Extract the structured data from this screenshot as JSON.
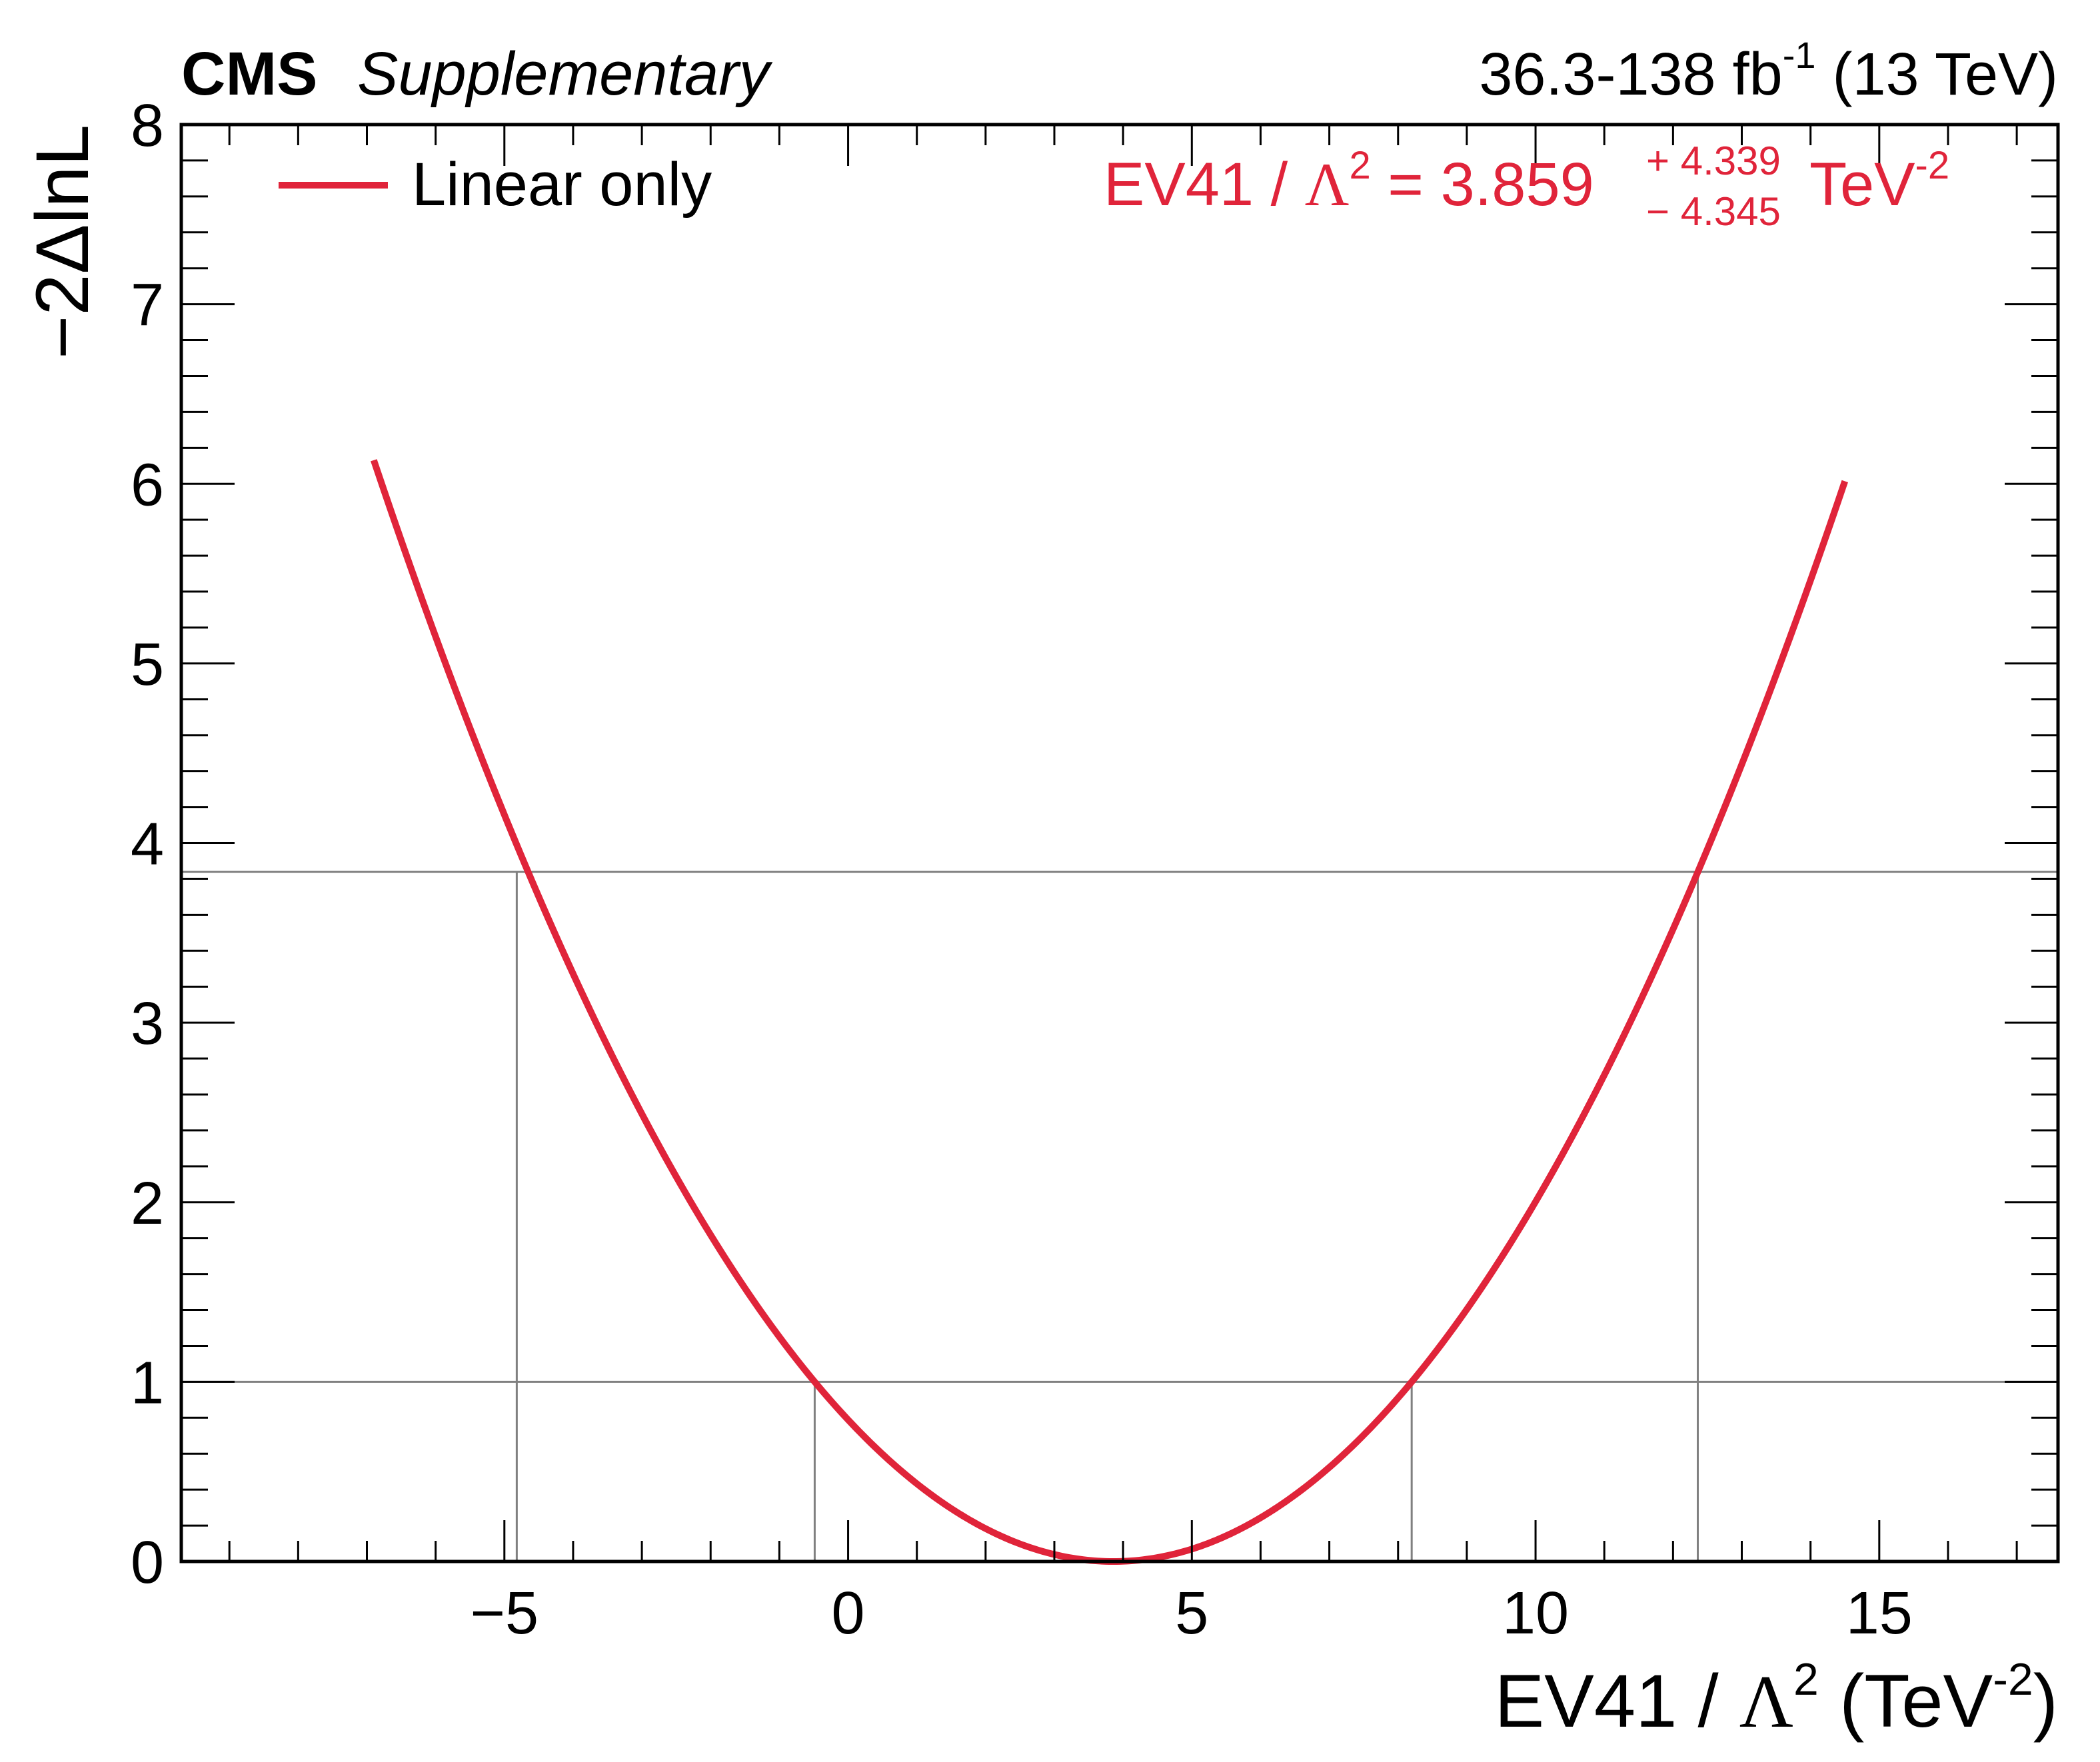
{
  "header": {
    "experiment": "CMS",
    "tag": "Supplementary",
    "lumi": "36.3-138 fb",
    "lumi_sup": "-1",
    "energy": " (13 TeV)"
  },
  "chart_data": {
    "type": "line",
    "series": [
      {
        "name": "Linear only",
        "color": "#e0243a",
        "x_range": [
          -6.9,
          14.5
        ],
        "best_fit": 3.859,
        "err_up": 4.339,
        "err_down": 4.345
      }
    ],
    "xlabel": {
      "prefix": "EV41 / ",
      "lambda": "Λ",
      "lambda_sup": "2",
      "unit_open": " (TeV",
      "unit_sup": "-2",
      "unit_close": ")"
    },
    "ylabel": "−2ΔlnL",
    "xlim": [
      -9.7,
      17.6
    ],
    "ylim": [
      0,
      8
    ],
    "x_ticks": [
      {
        "value": -5,
        "label": "−5"
      },
      {
        "value": 0,
        "label": "0"
      },
      {
        "value": 5,
        "label": "5"
      },
      {
        "value": 10,
        "label": "10"
      },
      {
        "value": 15,
        "label": "15"
      }
    ],
    "y_ticks": [
      {
        "value": 0,
        "label": "0"
      },
      {
        "value": 1,
        "label": "1"
      },
      {
        "value": 2,
        "label": "2"
      },
      {
        "value": 3,
        "label": "3"
      },
      {
        "value": 4,
        "label": "4"
      },
      {
        "value": 5,
        "label": "5"
      },
      {
        "value": 6,
        "label": "6"
      },
      {
        "value": 7,
        "label": "7"
      },
      {
        "value": 8,
        "label": "8"
      }
    ],
    "reference_lines": {
      "horizontal": [
        1.0,
        3.84
      ],
      "vertical": [
        -0.486,
        8.198,
        -4.82,
        12.36
      ],
      "color": "#808080"
    },
    "legend": {
      "position": "top-left",
      "entries": [
        "Linear only"
      ]
    },
    "annotation": {
      "text": "EV41 / ",
      "lambda": "Λ",
      "lambda_sup": "2",
      "equals": " = 3.859",
      "err_up": "+ 4.339",
      "err_down": "− 4.345",
      "unit": " TeV",
      "unit_sup": "-2",
      "color": "#e0243a"
    }
  }
}
